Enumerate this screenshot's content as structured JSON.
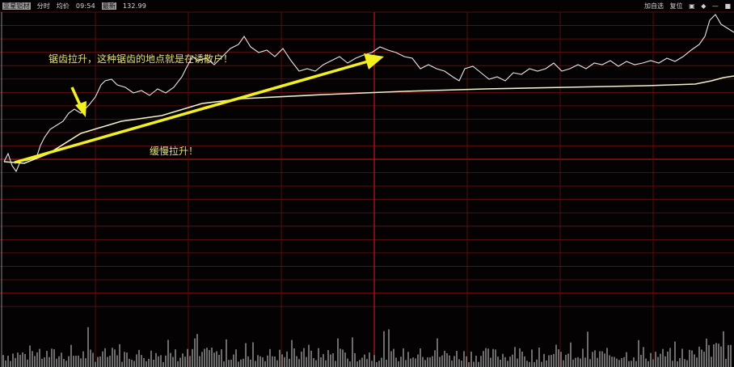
{
  "header": {
    "stock_name": "亚星铝材",
    "mode": "分时",
    "avg_label": "均价",
    "time": "09:54",
    "latest_label": "最新",
    "latest_price": "132.99"
  },
  "header_right": {
    "add_watchlist": "加自选",
    "reset": "复位",
    "icons": [
      "lock-icon",
      "diamond-icon",
      "minus-icon",
      "window-icon"
    ]
  },
  "annotations": {
    "sawtooth": "锯齿拉升，这种锯齿的地点就是在诱散户！",
    "slow": "缓慢拉升！"
  },
  "chart_data": {
    "type": "line",
    "series": [
      {
        "role": "price",
        "color": "#e8e8e8"
      },
      {
        "role": "average",
        "color": "#f2f0c8"
      }
    ],
    "volume_color": "#9a9a9a",
    "grid_color": "#6e0f12",
    "baseline_color": "#c0161c",
    "arrow_color": "#f2f01e",
    "grid": true
  }
}
